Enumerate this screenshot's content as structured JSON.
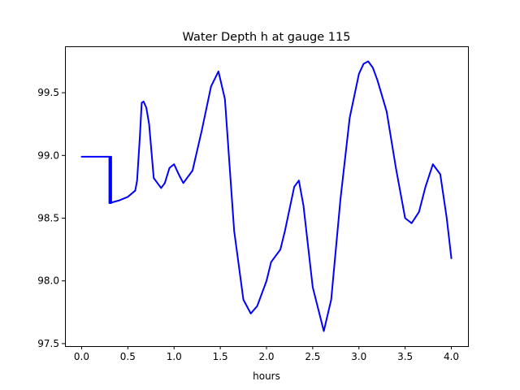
{
  "chart_data": {
    "type": "line",
    "title": "Water Depth h at gauge 115",
    "xlabel": "hours",
    "ylabel": "",
    "xlim": [
      -0.18,
      4.18
    ],
    "ylim": [
      97.48,
      99.87
    ],
    "xticks": [
      0.0,
      0.5,
      1.0,
      1.5,
      2.0,
      2.5,
      3.0,
      3.5,
      4.0
    ],
    "xtick_labels": [
      "0.0",
      "0.5",
      "1.0",
      "1.5",
      "2.0",
      "2.5",
      "3.0",
      "3.5",
      "4.0"
    ],
    "yticks": [
      97.5,
      98.0,
      98.5,
      99.0,
      99.5
    ],
    "ytick_labels": [
      "97.5",
      "98.0",
      "98.5",
      "99.0",
      "99.5"
    ],
    "grid": false,
    "series": [
      {
        "color": "#0000ff",
        "x": [
          0.0,
          0.29,
          0.3,
          0.3,
          0.31,
          0.31,
          0.32,
          0.32,
          0.3,
          0.3,
          0.3,
          0.4,
          0.5,
          0.58,
          0.6,
          0.63,
          0.65,
          0.67,
          0.7,
          0.73,
          0.78,
          0.82,
          0.86,
          0.9,
          0.95,
          1.0,
          1.05,
          1.1,
          1.2,
          1.3,
          1.4,
          1.48,
          1.55,
          1.65,
          1.75,
          1.83,
          1.9,
          2.0,
          2.05,
          2.1,
          2.15,
          2.2,
          2.3,
          2.35,
          2.4,
          2.5,
          2.62,
          2.7,
          2.8,
          2.9,
          3.0,
          3.05,
          3.1,
          3.15,
          3.2,
          3.3,
          3.4,
          3.5,
          3.57,
          3.65,
          3.72,
          3.8,
          3.88,
          3.95,
          4.0
        ],
        "y": [
          98.99,
          98.99,
          98.99,
          98.62,
          98.62,
          98.99,
          98.99,
          98.62,
          98.62,
          98.63,
          98.62,
          98.64,
          98.67,
          98.72,
          98.8,
          99.15,
          99.42,
          99.43,
          99.38,
          99.25,
          98.82,
          98.78,
          98.74,
          98.78,
          98.9,
          98.93,
          98.85,
          98.78,
          98.88,
          99.2,
          99.55,
          99.67,
          99.45,
          98.4,
          97.85,
          97.74,
          97.8,
          98.0,
          98.15,
          98.2,
          98.25,
          98.4,
          98.75,
          98.8,
          98.6,
          97.95,
          97.6,
          97.85,
          98.65,
          99.3,
          99.65,
          99.73,
          99.75,
          99.7,
          99.6,
          99.35,
          98.9,
          98.5,
          98.46,
          98.55,
          98.75,
          98.93,
          98.85,
          98.5,
          98.18
        ]
      }
    ]
  }
}
